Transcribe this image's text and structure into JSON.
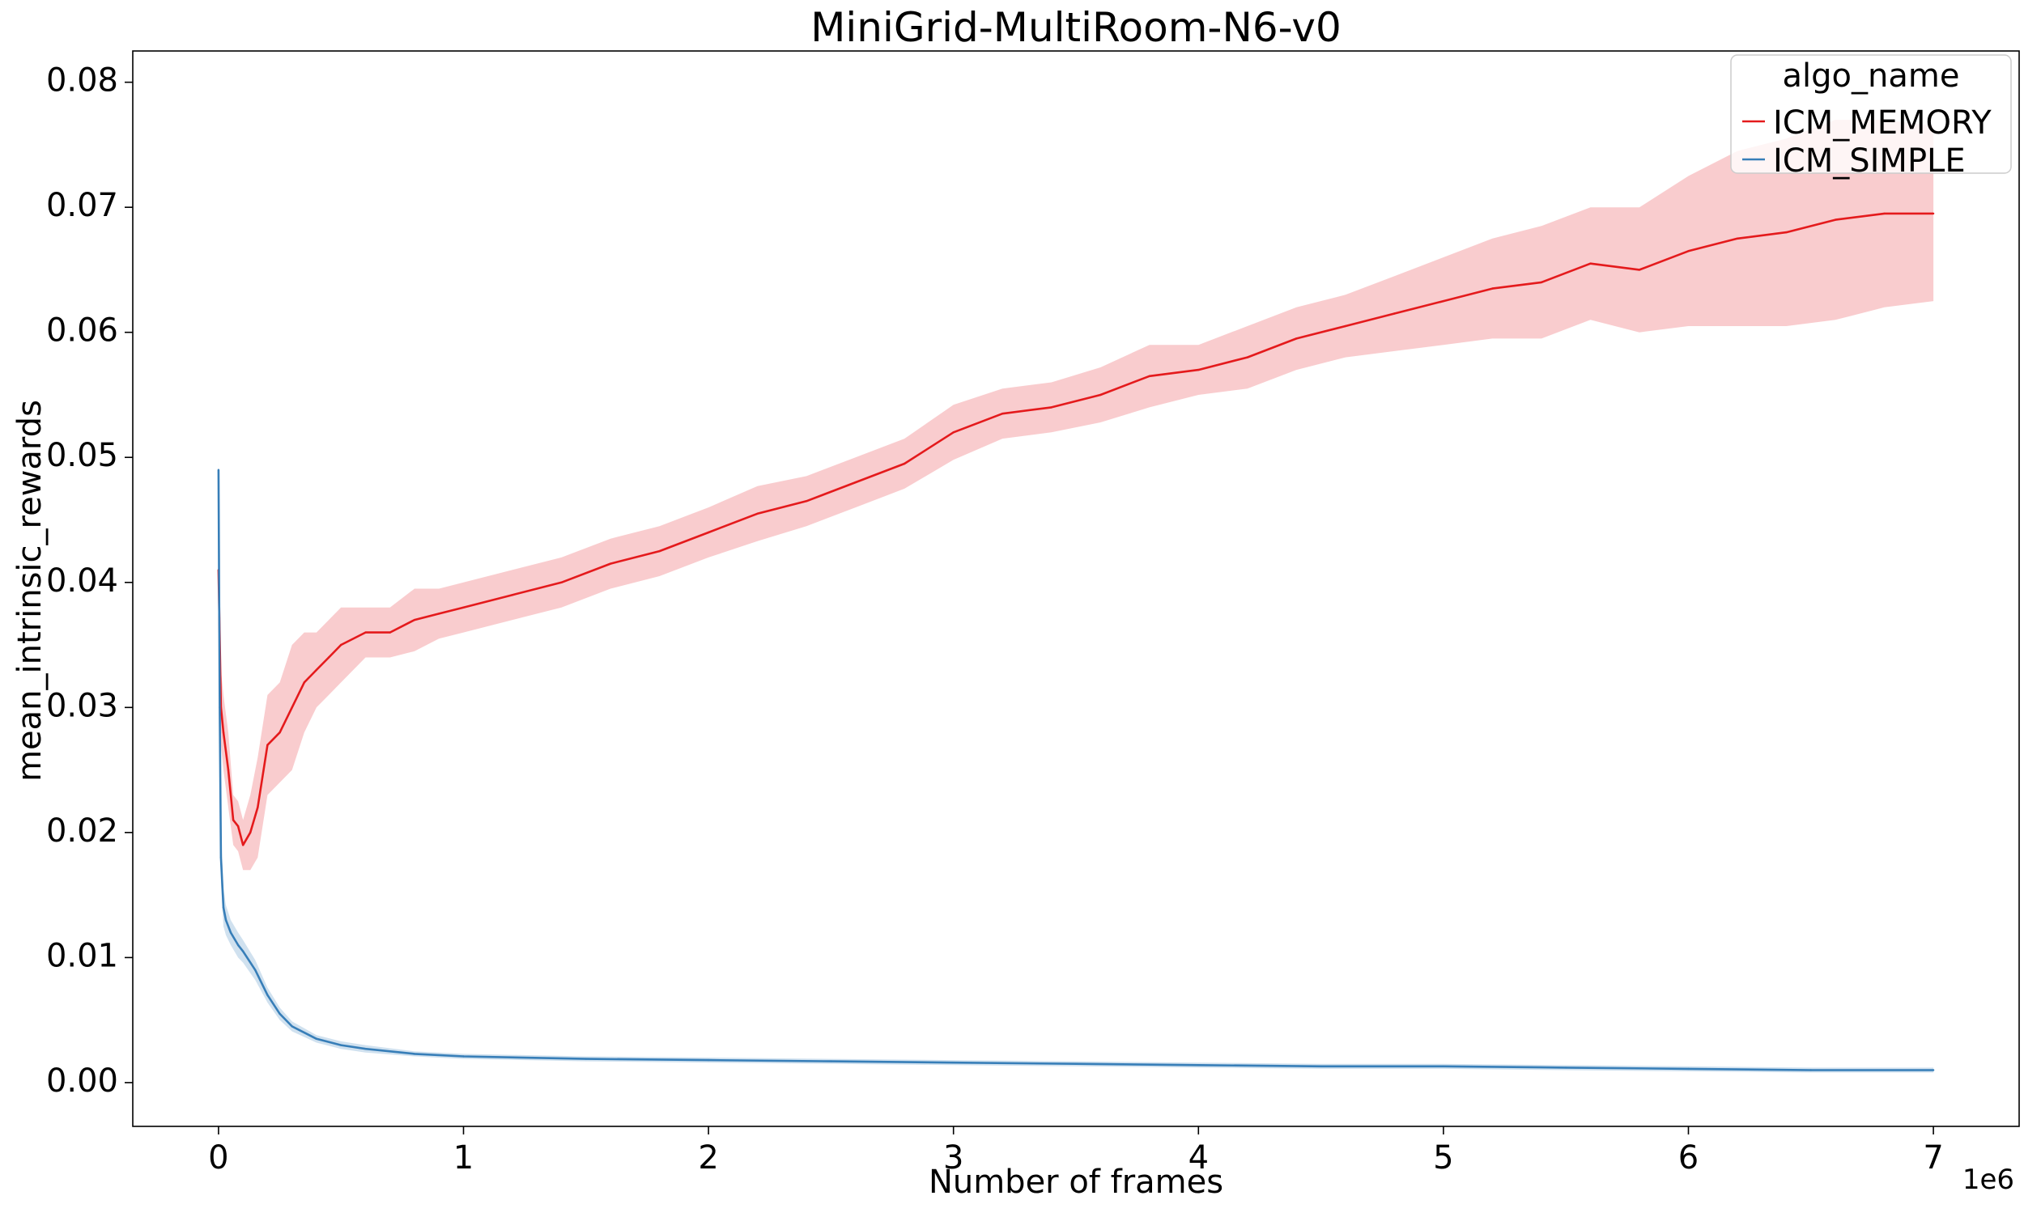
{
  "chart_data": {
    "type": "line",
    "title": "MiniGrid-MultiRoom-N6-v0",
    "xlabel": "Number of frames",
    "ylabel": "mean_intrinsic_rewards",
    "x_offset_label": "1e6",
    "xlim": [
      -0.35,
      7.35
    ],
    "ylim": [
      -0.0035,
      0.0825
    ],
    "x_ticks": [
      0,
      1,
      2,
      3,
      4,
      5,
      6,
      7
    ],
    "x_tick_labels": [
      "0",
      "1",
      "2",
      "3",
      "4",
      "5",
      "6",
      "7"
    ],
    "y_ticks": [
      0.0,
      0.01,
      0.02,
      0.03,
      0.04,
      0.05,
      0.06,
      0.07,
      0.08
    ],
    "y_tick_labels": [
      "0.00",
      "0.01",
      "0.02",
      "0.03",
      "0.04",
      "0.05",
      "0.06",
      "0.07",
      "0.08"
    ],
    "grid": false,
    "legend": {
      "title": "algo_name",
      "placement": "top-right"
    },
    "series": [
      {
        "name": "ICM_MEMORY",
        "color": "#e41a1c",
        "band_color": "#f4a3a5",
        "x": [
          0.0,
          0.01,
          0.02,
          0.04,
          0.06,
          0.08,
          0.1,
          0.13,
          0.16,
          0.2,
          0.25,
          0.3,
          0.35,
          0.4,
          0.45,
          0.5,
          0.6,
          0.7,
          0.8,
          0.9,
          1.0,
          1.2,
          1.4,
          1.6,
          1.8,
          2.0,
          2.2,
          2.4,
          2.6,
          2.8,
          3.0,
          3.2,
          3.4,
          3.6,
          3.8,
          4.0,
          4.2,
          4.4,
          4.6,
          4.8,
          5.0,
          5.2,
          5.4,
          5.6,
          5.8,
          6.0,
          6.2,
          6.4,
          6.6,
          6.8,
          7.0
        ],
        "y": [
          0.041,
          0.03,
          0.028,
          0.025,
          0.021,
          0.0205,
          0.019,
          0.02,
          0.022,
          0.027,
          0.028,
          0.03,
          0.032,
          0.033,
          0.034,
          0.035,
          0.036,
          0.036,
          0.037,
          0.0375,
          0.038,
          0.039,
          0.04,
          0.0415,
          0.0425,
          0.044,
          0.0455,
          0.0465,
          0.048,
          0.0495,
          0.052,
          0.0535,
          0.054,
          0.055,
          0.0565,
          0.057,
          0.058,
          0.0595,
          0.0605,
          0.0615,
          0.0625,
          0.0635,
          0.064,
          0.0655,
          0.065,
          0.0665,
          0.0675,
          0.068,
          0.069,
          0.0695,
          0.0695
        ],
        "band": [
          0.003,
          0.003,
          0.003,
          0.003,
          0.002,
          0.002,
          0.002,
          0.003,
          0.004,
          0.004,
          0.004,
          0.005,
          0.004,
          0.003,
          0.003,
          0.003,
          0.002,
          0.002,
          0.0025,
          0.002,
          0.002,
          0.002,
          0.002,
          0.002,
          0.002,
          0.002,
          0.0022,
          0.002,
          0.002,
          0.002,
          0.0022,
          0.002,
          0.002,
          0.0022,
          0.0025,
          0.002,
          0.0025,
          0.0025,
          0.0025,
          0.003,
          0.0035,
          0.004,
          0.0045,
          0.0045,
          0.005,
          0.006,
          0.007,
          0.0075,
          0.008,
          0.0075,
          0.007
        ]
      },
      {
        "name": "ICM_SIMPLE",
        "color": "#377eb8",
        "band_color": "#aac8e2",
        "x": [
          0.0,
          0.005,
          0.01,
          0.02,
          0.03,
          0.05,
          0.08,
          0.1,
          0.15,
          0.2,
          0.25,
          0.3,
          0.4,
          0.5,
          0.6,
          0.8,
          1.0,
          1.5,
          2.0,
          2.5,
          3.0,
          3.5,
          4.0,
          4.5,
          5.0,
          5.5,
          6.0,
          6.5,
          7.0
        ],
        "y": [
          0.049,
          0.03,
          0.018,
          0.014,
          0.013,
          0.012,
          0.011,
          0.0105,
          0.009,
          0.007,
          0.0055,
          0.0045,
          0.0035,
          0.003,
          0.0027,
          0.0023,
          0.0021,
          0.0019,
          0.0018,
          0.0017,
          0.0016,
          0.0015,
          0.0014,
          0.0013,
          0.0013,
          0.0012,
          0.0011,
          0.001,
          0.001
        ],
        "band": [
          0.001,
          0.002,
          0.002,
          0.0015,
          0.0012,
          0.001,
          0.001,
          0.0009,
          0.0008,
          0.0006,
          0.0005,
          0.0004,
          0.0003,
          0.0003,
          0.0003,
          0.0002,
          0.0002,
          0.0002,
          0.0002,
          0.0002,
          0.0002,
          0.0002,
          0.0002,
          0.0002,
          0.0002,
          0.0002,
          0.0002,
          0.0002,
          0.0002
        ]
      }
    ]
  }
}
